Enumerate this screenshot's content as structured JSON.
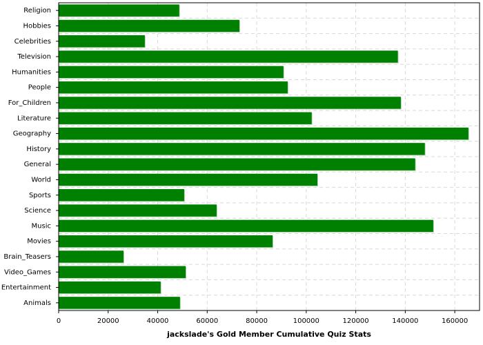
{
  "chart_data": {
    "type": "barh",
    "title": "jackslade's Gold Member Cumulative Quiz Stats",
    "categories": [
      "Religion",
      "Hobbies",
      "Celebrities",
      "Television",
      "Humanities",
      "People",
      "For_Children",
      "Literature",
      "Geography",
      "History",
      "General",
      "World",
      "Sports",
      "Science",
      "Music",
      "Movies",
      "Brain_Teasers",
      "Video_Games",
      "Entertainment",
      "Animals"
    ],
    "values": [
      48700,
      73000,
      34800,
      137000,
      90800,
      92500,
      138200,
      102200,
      165500,
      147900,
      144000,
      104500,
      50700,
      63800,
      151300,
      86400,
      26200,
      51300,
      41200,
      49000
    ],
    "color": "#008000",
    "xlim": [
      0,
      170000
    ],
    "xticks": [
      0,
      20000,
      40000,
      60000,
      80000,
      100000,
      120000,
      140000,
      160000
    ],
    "grid": true
  }
}
